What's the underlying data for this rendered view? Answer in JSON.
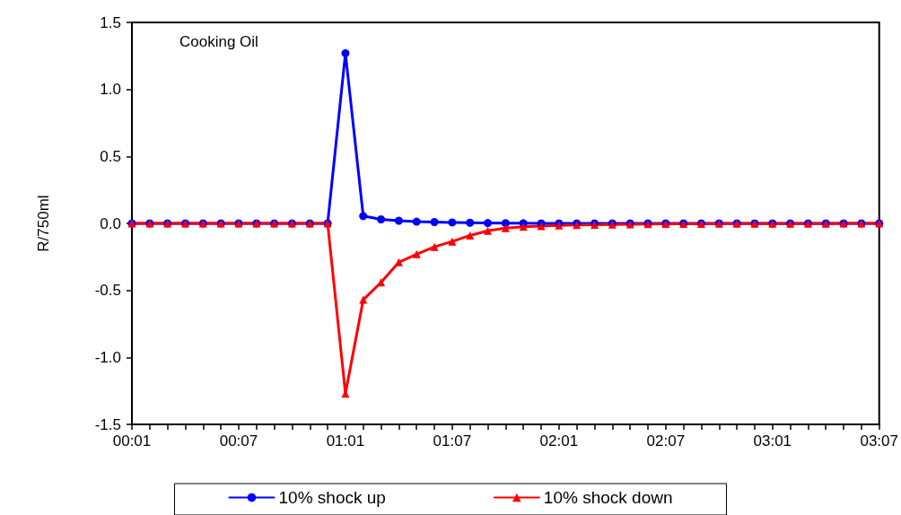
{
  "chart_data": {
    "type": "line",
    "title": "Cooking Oil",
    "ylabel": "R/750ml",
    "categories": [
      "00:01",
      null,
      null,
      null,
      null,
      null,
      "00:07",
      null,
      null,
      null,
      null,
      null,
      "01:01",
      null,
      null,
      null,
      null,
      null,
      "01:07",
      null,
      null,
      null,
      null,
      null,
      "02:01",
      null,
      null,
      null,
      null,
      null,
      "02:07",
      null,
      null,
      null,
      null,
      null,
      "03:01",
      null,
      null,
      null,
      null,
      null,
      "03:07"
    ],
    "series": [
      {
        "name": "10% shock up",
        "color": "#0000ff",
        "marker": "circle",
        "values": [
          0,
          0,
          0,
          0,
          0,
          0,
          0,
          0,
          0,
          0,
          0,
          0,
          1.27,
          0.055,
          0.03,
          0.02,
          0.013,
          0.01,
          0.007,
          0.005,
          0.003,
          0.002,
          0.001,
          0,
          0,
          0,
          0,
          0,
          0,
          0,
          0,
          0,
          0,
          0,
          0,
          0,
          0,
          0,
          0,
          0,
          0,
          0,
          0
        ]
      },
      {
        "name": "10% shock down",
        "color": "#ff0000",
        "marker": "triangle",
        "values": [
          0,
          0,
          0,
          0,
          0,
          0,
          0,
          0,
          0,
          0,
          0,
          0,
          -1.27,
          -0.57,
          -0.44,
          -0.29,
          -0.23,
          -0.175,
          -0.135,
          -0.09,
          -0.055,
          -0.035,
          -0.025,
          -0.02,
          -0.015,
          -0.012,
          -0.01,
          -0.008,
          -0.006,
          -0.005,
          -0.004,
          -0.003,
          -0.003,
          -0.002,
          -0.002,
          -0.002,
          -0.001,
          -0.001,
          -0.001,
          -0.001,
          0,
          0,
          0
        ]
      }
    ],
    "ylim": [
      -1.5,
      1.5
    ],
    "yticks": [
      -1.5,
      {
        "value": -1,
        "label": "-1.0"
      },
      -0.5,
      {
        "value": 0,
        "label": "0.0"
      },
      0.5,
      {
        "value": 1,
        "label": "1.0"
      },
      1.5
    ],
    "grid": false,
    "legend": "bottom",
    "line_style": "solid"
  }
}
